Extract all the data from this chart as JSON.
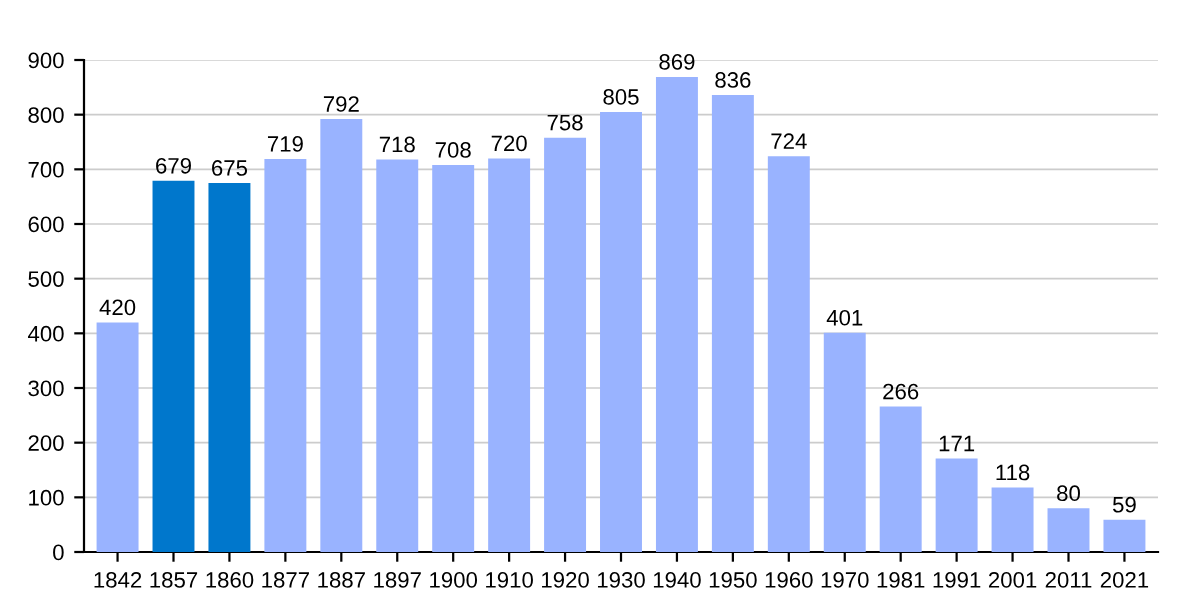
{
  "chart_data": {
    "type": "bar",
    "categories": [
      "1842",
      "1857",
      "1860",
      "1877",
      "1887",
      "1897",
      "1900",
      "1910",
      "1920",
      "1930",
      "1940",
      "1950",
      "1960",
      "1970",
      "1981",
      "1991",
      "2001",
      "2011",
      "2021"
    ],
    "values": [
      420,
      679,
      675,
      719,
      792,
      718,
      708,
      720,
      758,
      805,
      869,
      836,
      724,
      401,
      266,
      171,
      118,
      80,
      59
    ],
    "colors": [
      "#99b3ff",
      "#0077cc",
      "#0077cc",
      "#99b3ff",
      "#99b3ff",
      "#99b3ff",
      "#99b3ff",
      "#99b3ff",
      "#99b3ff",
      "#99b3ff",
      "#99b3ff",
      "#99b3ff",
      "#99b3ff",
      "#99b3ff",
      "#99b3ff",
      "#99b3ff",
      "#99b3ff",
      "#99b3ff",
      "#99b3ff"
    ],
    "ylim": [
      0,
      900
    ],
    "yticks": [
      0,
      100,
      200,
      300,
      400,
      500,
      600,
      700,
      800,
      900
    ],
    "grid": "y",
    "data_labels": true
  }
}
